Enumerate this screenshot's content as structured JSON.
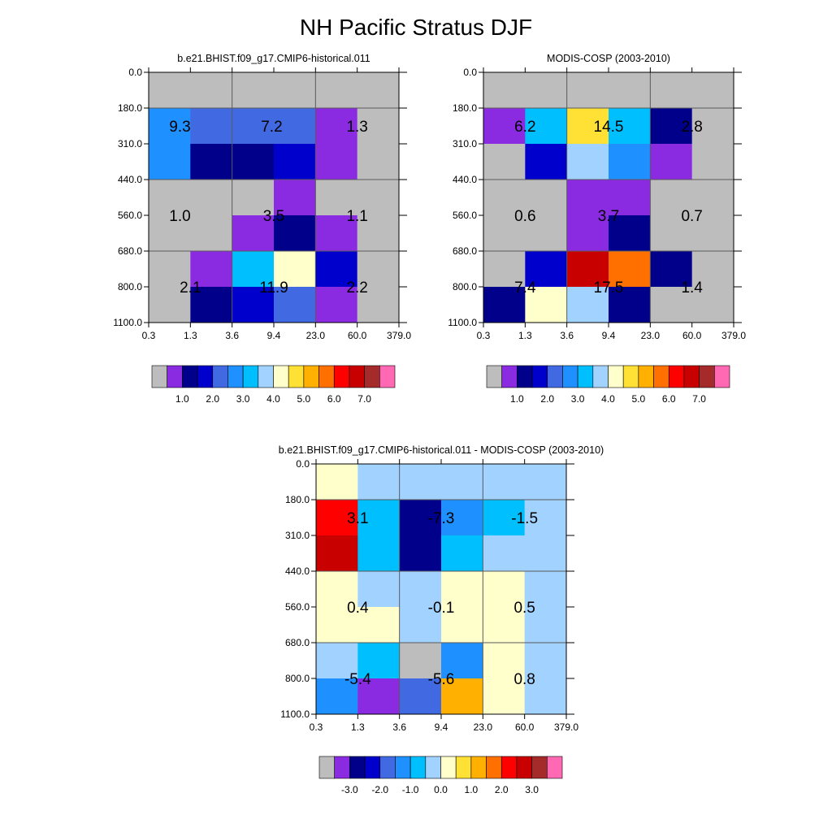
{
  "title": "NH Pacific Stratus DJF",
  "colors": {
    "missing": "#bdbdbd",
    "cell_edge": "#5a5a5a"
  },
  "chart_data": [
    {
      "type": "heatmap",
      "name": "model",
      "title": "b.e21.BHIST.f09_g17.CMIP6-historical.011",
      "xlabel": "",
      "ylabel": "",
      "x_ticks": [
        "0.3",
        "1.3",
        "3.6",
        "9.4",
        "23.0",
        "60.0",
        "379.0"
      ],
      "y_ticks": [
        "0.0",
        "180.0",
        "310.0",
        "440.0",
        "560.0",
        "680.0",
        "800.0",
        "1100.0"
      ],
      "cells": [
        [
          "#bdbdbd",
          "#bdbdbd",
          "#bdbdbd",
          "#bdbdbd",
          "#bdbdbd",
          "#bdbdbd"
        ],
        [
          "#1e90ff",
          "#4169e1",
          "#4169e1",
          "#4169e1",
          "#8a2be2",
          "#bdbdbd"
        ],
        [
          "#1e90ff",
          "#00008b",
          "#00008b",
          "#0000cd",
          "#8a2be2",
          "#bdbdbd"
        ],
        [
          "#bdbdbd",
          "#bdbdbd",
          "#bdbdbd",
          "#8a2be2",
          "#bdbdbd",
          "#bdbdbd"
        ],
        [
          "#bdbdbd",
          "#bdbdbd",
          "#8a2be2",
          "#00008b",
          "#8a2be2",
          "#bdbdbd"
        ],
        [
          "#bdbdbd",
          "#8a2be2",
          "#00bfff",
          "#ffffcc",
          "#0000cd",
          "#bdbdbd"
        ],
        [
          "#bdbdbd",
          "#00008b",
          "#0000cd",
          "#4169e1",
          "#8a2be2",
          "#bdbdbd"
        ]
      ],
      "annotations": [
        {
          "label": "9.3",
          "col": 0.75,
          "row": 1.5
        },
        {
          "label": "7.2",
          "col": 2.95,
          "row": 1.5
        },
        {
          "label": "1.3",
          "col": 5.0,
          "row": 1.5
        },
        {
          "label": "1.0",
          "col": 0.75,
          "row": 4.0
        },
        {
          "label": "3.5",
          "col": 3.0,
          "row": 4.0
        },
        {
          "label": "1.1",
          "col": 5.0,
          "row": 4.0
        },
        {
          "label": "2.1",
          "col": 1.0,
          "row": 6.0
        },
        {
          "label": "11.9",
          "col": 3.0,
          "row": 6.0
        },
        {
          "label": "2.2",
          "col": 5.0,
          "row": 6.0
        }
      ],
      "colorbar": {
        "colors": [
          "#bdbdbd",
          "#8a2be2",
          "#00008b",
          "#0000cd",
          "#4169e1",
          "#1e90ff",
          "#00bfff",
          "#a2d2ff",
          "#ffffcc",
          "#ffe135",
          "#ffb000",
          "#ff7000",
          "#ff0000",
          "#c80000",
          "#a52a2a",
          "#ff69b4"
        ],
        "labels": [
          {
            "text": "1.0",
            "boundary": 2
          },
          {
            "text": "2.0",
            "boundary": 4
          },
          {
            "text": "3.0",
            "boundary": 6
          },
          {
            "text": "4.0",
            "boundary": 8
          },
          {
            "text": "5.0",
            "boundary": 10
          },
          {
            "text": "6.0",
            "boundary": 12
          },
          {
            "text": "7.0",
            "boundary": 14
          }
        ]
      }
    },
    {
      "type": "heatmap",
      "name": "obs",
      "title": "MODIS-COSP (2003-2010)",
      "xlabel": "",
      "ylabel": "",
      "x_ticks": [
        "0.3",
        "1.3",
        "3.6",
        "9.4",
        "23.0",
        "60.0",
        "379.0"
      ],
      "y_ticks": [
        "0.0",
        "180.0",
        "310.0",
        "440.0",
        "560.0",
        "680.0",
        "800.0",
        "1100.0"
      ],
      "cells": [
        [
          "#bdbdbd",
          "#bdbdbd",
          "#bdbdbd",
          "#bdbdbd",
          "#bdbdbd",
          "#bdbdbd"
        ],
        [
          "#8a2be2",
          "#00bfff",
          "#ffe135",
          "#00bfff",
          "#00008b",
          "#bdbdbd"
        ],
        [
          "#bdbdbd",
          "#0000cd",
          "#a2d2ff",
          "#1e90ff",
          "#8a2be2",
          "#bdbdbd"
        ],
        [
          "#bdbdbd",
          "#bdbdbd",
          "#8a2be2",
          "#8a2be2",
          "#bdbdbd",
          "#bdbdbd"
        ],
        [
          "#bdbdbd",
          "#bdbdbd",
          "#8a2be2",
          "#00008b",
          "#bdbdbd",
          "#bdbdbd"
        ],
        [
          "#bdbdbd",
          "#0000cd",
          "#c80000",
          "#ff7000",
          "#00008b",
          "#bdbdbd"
        ],
        [
          "#00008b",
          "#ffffcc",
          "#a2d2ff",
          "#00008b",
          "#bdbdbd",
          "#bdbdbd"
        ]
      ],
      "annotations": [
        {
          "label": "6.2",
          "col": 1.0,
          "row": 1.5
        },
        {
          "label": "14.5",
          "col": 3.0,
          "row": 1.5
        },
        {
          "label": "2.8",
          "col": 5.0,
          "row": 1.5
        },
        {
          "label": "0.6",
          "col": 1.0,
          "row": 4.0
        },
        {
          "label": "3.7",
          "col": 3.0,
          "row": 4.0
        },
        {
          "label": "0.7",
          "col": 5.0,
          "row": 4.0
        },
        {
          "label": "7.4",
          "col": 1.0,
          "row": 6.0
        },
        {
          "label": "17.5",
          "col": 3.0,
          "row": 6.0
        },
        {
          "label": "1.4",
          "col": 5.0,
          "row": 6.0
        }
      ],
      "colorbar": {
        "colors": [
          "#bdbdbd",
          "#8a2be2",
          "#00008b",
          "#0000cd",
          "#4169e1",
          "#1e90ff",
          "#00bfff",
          "#a2d2ff",
          "#ffffcc",
          "#ffe135",
          "#ffb000",
          "#ff7000",
          "#ff0000",
          "#c80000",
          "#a52a2a",
          "#ff69b4"
        ],
        "labels": [
          {
            "text": "1.0",
            "boundary": 2
          },
          {
            "text": "2.0",
            "boundary": 4
          },
          {
            "text": "3.0",
            "boundary": 6
          },
          {
            "text": "4.0",
            "boundary": 8
          },
          {
            "text": "5.0",
            "boundary": 10
          },
          {
            "text": "6.0",
            "boundary": 12
          },
          {
            "text": "7.0",
            "boundary": 14
          }
        ]
      }
    },
    {
      "type": "heatmap",
      "name": "diff",
      "title": "b.e21.BHIST.f09_g17.CMIP6-historical.011 - MODIS-COSP (2003-2010)",
      "xlabel": "",
      "ylabel": "",
      "x_ticks": [
        "0.3",
        "1.3",
        "3.6",
        "9.4",
        "23.0",
        "60.0",
        "379.0"
      ],
      "y_ticks": [
        "0.0",
        "180.0",
        "310.0",
        "440.0",
        "560.0",
        "680.0",
        "800.0",
        "1100.0"
      ],
      "cells": [
        [
          "#ffffcc",
          "#a2d2ff",
          "#a2d2ff",
          "#a2d2ff",
          "#a2d2ff",
          "#a2d2ff"
        ],
        [
          "#ff0000",
          "#00bfff",
          "#00008b",
          "#1e90ff",
          "#00bfff",
          "#a2d2ff"
        ],
        [
          "#c80000",
          "#00bfff",
          "#00008b",
          "#00bfff",
          "#a2d2ff",
          "#a2d2ff"
        ],
        [
          "#ffffcc",
          "#a2d2ff",
          "#a2d2ff",
          "#ffffcc",
          "#ffffcc",
          "#a2d2ff"
        ],
        [
          "#ffffcc",
          "#ffffcc",
          "#a2d2ff",
          "#ffffcc",
          "#ffffcc",
          "#a2d2ff"
        ],
        [
          "#a2d2ff",
          "#00bfff",
          "#bdbdbd",
          "#1e90ff",
          "#ffffcc",
          "#a2d2ff"
        ],
        [
          "#1e90ff",
          "#8a2be2",
          "#4169e1",
          "#ffb000",
          "#ffffcc",
          "#a2d2ff"
        ]
      ],
      "annotations": [
        {
          "label": "3.1",
          "col": 1.0,
          "row": 1.5
        },
        {
          "label": "-7.3",
          "col": 3.0,
          "row": 1.5
        },
        {
          "label": "-1.5",
          "col": 5.0,
          "row": 1.5
        },
        {
          "label": "0.4",
          "col": 1.0,
          "row": 4.0
        },
        {
          "label": "-0.1",
          "col": 3.0,
          "row": 4.0
        },
        {
          "label": "0.5",
          "col": 5.0,
          "row": 4.0
        },
        {
          "label": "-5.4",
          "col": 1.0,
          "row": 6.0
        },
        {
          "label": "-5.6",
          "col": 3.0,
          "row": 6.0
        },
        {
          "label": "0.8",
          "col": 5.0,
          "row": 6.0
        }
      ],
      "colorbar": {
        "colors": [
          "#bdbdbd",
          "#8a2be2",
          "#00008b",
          "#0000cd",
          "#4169e1",
          "#1e90ff",
          "#00bfff",
          "#a2d2ff",
          "#ffffcc",
          "#ffe135",
          "#ffb000",
          "#ff7000",
          "#ff0000",
          "#c80000",
          "#a52a2a",
          "#ff69b4"
        ],
        "labels": [
          {
            "text": "-3.0",
            "boundary": 2
          },
          {
            "text": "-2.0",
            "boundary": 4
          },
          {
            "text": "-1.0",
            "boundary": 6
          },
          {
            "text": "0.0",
            "boundary": 8
          },
          {
            "text": "1.0",
            "boundary": 10
          },
          {
            "text": "2.0",
            "boundary": 12
          },
          {
            "text": "3.0",
            "boundary": 14
          }
        ]
      }
    }
  ]
}
